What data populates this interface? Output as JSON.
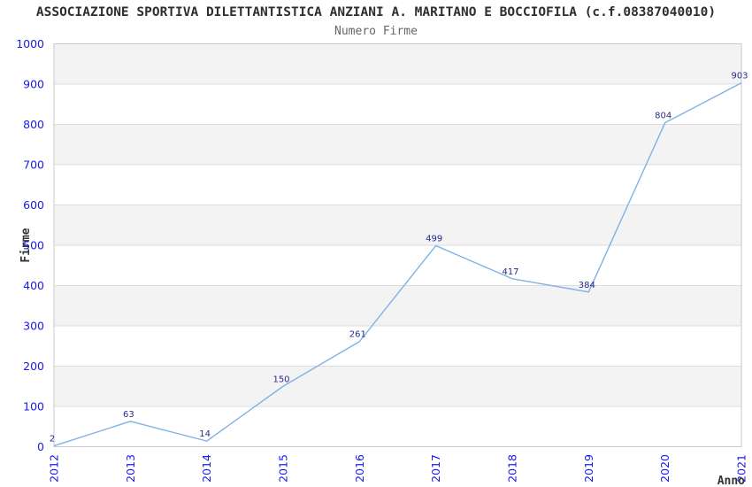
{
  "chart_data": {
    "type": "line",
    "title": "ASSOCIAZIONE SPORTIVA DILETTANTISTICA ANZIANI A. MARITANO E BOCCIOFILA (c.f.08387040010)",
    "subtitle": "Numero Firme",
    "xlabel": "Anno",
    "ylabel": "Firme",
    "categories": [
      "2012",
      "2013",
      "2014",
      "2015",
      "2016",
      "2017",
      "2018",
      "2019",
      "2020",
      "2021"
    ],
    "values": [
      2,
      63,
      14,
      150,
      261,
      499,
      417,
      384,
      804,
      903
    ],
    "ylim": [
      0,
      1000
    ],
    "ytick_step": 100,
    "legend": "none",
    "grid": "horizontal-alternating-bands",
    "point_markers": "none",
    "x_tick_rotation": -90,
    "colors": {
      "background": "#ffffff",
      "band_fill": "#f3f3f3",
      "gridline": "#dddddd",
      "plot_border": "#c9c9c9",
      "line": "#7fb2e5",
      "tick_label": "#1a1aeb",
      "value_label": "#29298f",
      "title": "#2e2e2e",
      "subtitle": "#666666",
      "axis_label": "#333333"
    }
  }
}
